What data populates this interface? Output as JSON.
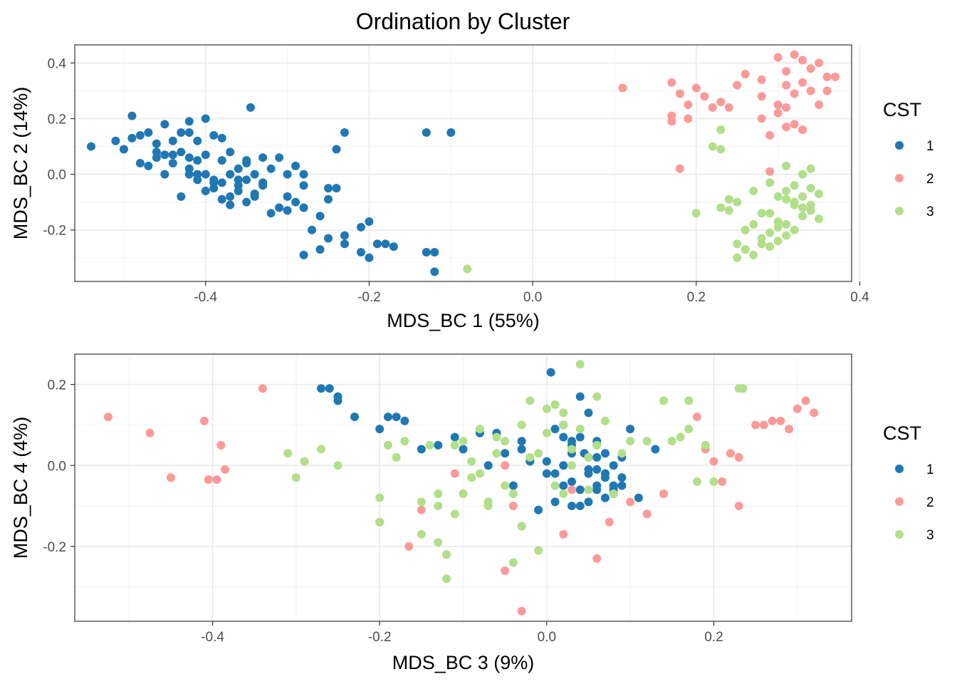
{
  "figure_title": "Ordination by Cluster",
  "colors": {
    "1": "#1f78b4",
    "2": "#fb9a99",
    "3": "#b2df8a"
  },
  "chart_data": [
    {
      "type": "scatter",
      "xlabel": "MDS_BC 1 (55%)",
      "ylabel": "MDS_BC 2 (14%)",
      "xlim": [
        -0.56,
        0.39
      ],
      "ylim": [
        -0.385,
        0.465
      ],
      "xticks": [
        -0.4,
        -0.2,
        0.0,
        0.2,
        0.4
      ],
      "xtick_labels": [
        "-0.4",
        "-0.2",
        "0.0",
        "0.2",
        "0.4"
      ],
      "yticks": [
        -0.2,
        0.0,
        0.2,
        0.4
      ],
      "ytick_labels": [
        "-0.2",
        "0.0",
        "0.2",
        "0.4"
      ],
      "grid": true,
      "legend": {
        "title": "CST",
        "placement": "right",
        "entries": [
          "1",
          "2",
          "3"
        ]
      },
      "series": [
        {
          "name": "1",
          "color": "#1f78b4",
          "x": [
            -0.54,
            -0.51,
            -0.5,
            -0.49,
            -0.49,
            -0.48,
            -0.48,
            -0.47,
            -0.47,
            -0.46,
            -0.46,
            -0.45,
            -0.45,
            -0.44,
            -0.44,
            -0.43,
            -0.43,
            -0.42,
            -0.42,
            -0.42,
            -0.41,
            -0.41,
            -0.41,
            -0.4,
            -0.4,
            -0.4,
            -0.39,
            -0.39,
            -0.38,
            -0.38,
            -0.38,
            -0.37,
            -0.37,
            -0.37,
            -0.36,
            -0.36,
            -0.35,
            -0.35,
            -0.35,
            -0.34,
            -0.34,
            -0.33,
            -0.33,
            -0.32,
            -0.32,
            -0.31,
            -0.31,
            -0.3,
            -0.3,
            -0.29,
            -0.29,
            -0.28,
            -0.28,
            -0.28,
            -0.27,
            -0.26,
            -0.25,
            -0.25,
            -0.24,
            -0.24,
            -0.23,
            -0.23,
            -0.21,
            -0.21,
            -0.2,
            -0.19,
            -0.18,
            -0.17,
            -0.13,
            -0.13,
            -0.12,
            -0.12,
            -0.1,
            -0.45,
            -0.44,
            -0.43,
            -0.41,
            -0.39,
            -0.36,
            -0.33,
            -0.3,
            -0.28,
            -0.26,
            -0.25,
            -0.23,
            -0.2,
            -0.345,
            -0.42,
            -0.4,
            -0.38,
            -0.37,
            -0.36,
            -0.35,
            -0.34,
            -0.46,
            -0.42,
            -0.39
          ],
          "y": [
            0.1,
            0.12,
            0.09,
            0.21,
            0.13,
            0.14,
            0.04,
            0.15,
            0.03,
            0.11,
            0.06,
            0.18,
            0.07,
            0.04,
            0.12,
            0.15,
            0.08,
            0.19,
            0.06,
            0.0,
            0.12,
            0.05,
            -0.02,
            0.2,
            0.07,
            0.0,
            0.14,
            -0.05,
            0.13,
            0.05,
            -0.03,
            0.08,
            0.0,
            -0.08,
            0.02,
            -0.06,
            0.05,
            -0.02,
            -0.1,
            0.0,
            -0.08,
            0.06,
            -0.03,
            0.02,
            -0.14,
            0.06,
            -0.12,
            0.0,
            -0.08,
            0.03,
            -0.1,
            -0.12,
            -0.04,
            0.0,
            -0.2,
            -0.15,
            -0.23,
            -0.09,
            0.09,
            -0.05,
            -0.25,
            -0.22,
            -0.28,
            -0.19,
            -0.3,
            -0.25,
            -0.25,
            -0.26,
            -0.28,
            0.15,
            -0.35,
            -0.28,
            0.15,
            0.0,
            0.07,
            -0.08,
            0.0,
            -0.02,
            -0.02,
            -0.04,
            -0.13,
            -0.29,
            -0.27,
            -0.05,
            0.15,
            -0.17,
            0.24,
            0.15,
            -0.06,
            -0.09,
            -0.11,
            -0.04,
            0.04,
            -0.07,
            0.08,
            0.02,
            -0.03
          ]
        },
        {
          "name": "2",
          "color": "#fb9a99",
          "x": [
            0.11,
            0.17,
            0.17,
            0.18,
            0.18,
            0.19,
            0.19,
            0.2,
            0.21,
            0.22,
            0.23,
            0.24,
            0.25,
            0.26,
            0.28,
            0.28,
            0.29,
            0.29,
            0.3,
            0.3,
            0.31,
            0.31,
            0.31,
            0.32,
            0.32,
            0.32,
            0.33,
            0.33,
            0.33,
            0.34,
            0.34,
            0.35,
            0.35,
            0.36,
            0.36,
            0.37,
            0.17,
            0.28,
            0.31,
            0.3
          ],
          "y": [
            0.31,
            0.33,
            0.21,
            0.02,
            0.29,
            0.25,
            0.2,
            0.31,
            0.28,
            0.24,
            0.26,
            0.24,
            0.32,
            0.36,
            0.28,
            0.34,
            0.14,
            0.01,
            0.22,
            0.42,
            0.37,
            0.32,
            0.24,
            0.43,
            0.29,
            0.18,
            0.41,
            0.33,
            0.16,
            0.38,
            0.3,
            0.25,
            0.4,
            0.35,
            0.3,
            0.35,
            0.19,
            0.2,
            0.17,
            0.25
          ]
        },
        {
          "name": "3",
          "color": "#b2df8a",
          "x": [
            -0.08,
            0.2,
            0.22,
            0.23,
            0.23,
            0.24,
            0.24,
            0.25,
            0.25,
            0.26,
            0.26,
            0.27,
            0.27,
            0.28,
            0.28,
            0.29,
            0.29,
            0.3,
            0.3,
            0.31,
            0.31,
            0.31,
            0.32,
            0.32,
            0.33,
            0.33,
            0.34,
            0.34,
            0.35,
            0.35,
            0.29,
            0.31,
            0.33,
            0.34,
            0.25,
            0.3,
            0.32,
            0.28,
            0.3,
            0.33,
            0.31,
            0.29,
            0.32,
            0.27,
            0.34,
            0.23
          ],
          "y": [
            -0.34,
            -0.14,
            0.1,
            0.16,
            0.09,
            -0.09,
            -0.13,
            -0.1,
            -0.3,
            -0.2,
            -0.27,
            -0.18,
            -0.06,
            -0.25,
            -0.14,
            -0.21,
            -0.03,
            -0.24,
            -0.08,
            -0.18,
            -0.06,
            0.03,
            -0.2,
            -0.1,
            -0.15,
            0.0,
            -0.13,
            -0.05,
            -0.16,
            -0.07,
            -0.26,
            -0.22,
            -0.08,
            0.02,
            -0.25,
            -0.17,
            -0.11,
            -0.23,
            -0.19,
            -0.12,
            -0.09,
            -0.14,
            -0.04,
            -0.29,
            -0.11,
            -0.12
          ]
        }
      ]
    },
    {
      "type": "scatter",
      "xlabel": "MDS_BC 3 (9%)",
      "ylabel": "MDS_BC 4 (4%)",
      "xlim": [
        -0.565,
        0.365
      ],
      "ylim": [
        -0.385,
        0.275
      ],
      "xticks": [
        -0.4,
        -0.2,
        0.0,
        0.2
      ],
      "xtick_labels": [
        "-0.4",
        "-0.2",
        "0.0",
        "0.2"
      ],
      "yticks": [
        -0.2,
        0.0,
        0.2
      ],
      "ytick_labels": [
        "-0.2",
        "0.0",
        "0.2"
      ],
      "grid": true,
      "legend": {
        "title": "CST",
        "placement": "right",
        "entries": [
          "1",
          "2",
          "3"
        ]
      },
      "series": [
        {
          "name": "1",
          "color": "#1f78b4",
          "x": [
            -0.27,
            -0.26,
            -0.25,
            -0.25,
            -0.23,
            -0.2,
            -0.19,
            -0.18,
            -0.17,
            -0.13,
            -0.11,
            -0.1,
            -0.08,
            -0.07,
            -0.05,
            -0.04,
            -0.03,
            -0.02,
            -0.01,
            0.0,
            0.01,
            0.02,
            0.02,
            0.03,
            0.03,
            0.04,
            0.04,
            0.05,
            0.05,
            0.06,
            0.06,
            0.07,
            0.07,
            0.08,
            0.08,
            0.09,
            0.09,
            0.1,
            0.11,
            0.13,
            0.0,
            0.02,
            0.04,
            0.06,
            0.03,
            0.05,
            0.07,
            0.09,
            0.03,
            0.05,
            0.06,
            -0.06,
            -0.03,
            0.01,
            0.04,
            0.08,
            0.02,
            0.06,
            0.08,
            0.005,
            0.045,
            0.03,
            0.05,
            0.01,
            0.07,
            -0.15,
            0.07
          ],
          "y": [
            0.19,
            0.19,
            0.17,
            0.16,
            0.12,
            0.09,
            0.12,
            0.12,
            0.11,
            0.05,
            0.07,
            0.04,
            0.08,
            0.0,
            0.03,
            -0.05,
            0.04,
            0.01,
            -0.11,
            0.01,
            0.09,
            -0.05,
            0.0,
            0.03,
            -0.1,
            0.07,
            -0.06,
            0.02,
            -0.09,
            0.02,
            -0.06,
            0.03,
            -0.03,
            0.0,
            -0.07,
            0.02,
            -0.05,
            0.09,
            -0.08,
            0.04,
            -0.02,
            0.07,
            0.17,
            -0.01,
            -0.04,
            0.13,
            -0.08,
            -0.03,
            0.06,
            -0.02,
            -0.05,
            0.08,
            0.06,
            -0.09,
            -0.1,
            -0.06,
            0.1,
            0.06,
            -0.05,
            0.23,
            0.03,
            0.05,
            -0.01,
            -0.02,
            -0.02,
            0.04,
            -0.02
          ]
        },
        {
          "name": "2",
          "color": "#fb9a99",
          "x": [
            -0.525,
            -0.475,
            -0.45,
            -0.41,
            -0.405,
            -0.395,
            -0.39,
            -0.385,
            -0.34,
            -0.29,
            -0.2,
            -0.165,
            -0.15,
            -0.11,
            -0.1,
            -0.05,
            -0.05,
            -0.04,
            -0.03,
            -0.03,
            0.02,
            0.03,
            0.06,
            0.075,
            0.1,
            0.12,
            0.14,
            0.18,
            0.19,
            0.2,
            0.21,
            0.22,
            0.23,
            0.23,
            0.25,
            0.26,
            0.27,
            0.28,
            0.29,
            0.3,
            0.31,
            0.32
          ],
          "y": [
            0.12,
            0.08,
            -0.03,
            0.11,
            -0.035,
            -0.035,
            0.05,
            -0.01,
            0.19,
            0.01,
            -0.14,
            -0.2,
            -0.11,
            -0.02,
            -0.07,
            -0.26,
            0.0,
            -0.1,
            -0.15,
            -0.36,
            -0.17,
            -0.06,
            -0.23,
            -0.14,
            -0.09,
            -0.12,
            -0.07,
            0.12,
            0.04,
            0.01,
            -0.04,
            0.03,
            0.02,
            -0.1,
            0.1,
            0.1,
            0.11,
            0.11,
            0.09,
            0.14,
            0.16,
            0.13
          ]
        },
        {
          "name": "3",
          "color": "#b2df8a",
          "x": [
            -0.31,
            -0.3,
            -0.29,
            -0.27,
            -0.25,
            -0.2,
            -0.2,
            -0.19,
            -0.18,
            -0.17,
            -0.15,
            -0.15,
            -0.14,
            -0.13,
            -0.13,
            -0.12,
            -0.12,
            -0.11,
            -0.11,
            -0.1,
            -0.1,
            -0.09,
            -0.09,
            -0.08,
            -0.08,
            -0.07,
            -0.07,
            -0.06,
            -0.06,
            -0.05,
            -0.05,
            -0.04,
            -0.04,
            -0.03,
            -0.03,
            -0.02,
            -0.02,
            -0.01,
            -0.01,
            0.0,
            0.0,
            0.01,
            0.01,
            0.02,
            0.02,
            0.02,
            0.03,
            0.03,
            0.04,
            0.04,
            0.05,
            0.05,
            0.06,
            0.06,
            0.07,
            0.08,
            0.09,
            0.1,
            0.12,
            0.14,
            0.15,
            0.16,
            0.17,
            0.17,
            0.18,
            0.19,
            0.2,
            0.23,
            0.235,
            -0.12,
            -0.13
          ],
          "y": [
            0.03,
            -0.03,
            0.01,
            0.04,
            0.0,
            -0.08,
            -0.14,
            0.05,
            0.02,
            0.06,
            -0.09,
            -0.17,
            0.05,
            -0.19,
            -0.07,
            -0.22,
            -0.28,
            0.05,
            -0.12,
            -0.07,
            0.06,
            -0.03,
            0.01,
            0.09,
            -0.02,
            -0.09,
            -0.1,
            0.03,
            0.07,
            -0.05,
            0.06,
            -0.07,
            -0.24,
            0.1,
            -0.15,
            0.16,
            0.02,
            -0.21,
            0.03,
            0.14,
            0.08,
            -0.05,
            0.15,
            0.1,
            -0.07,
            0.13,
            0.0,
            0.04,
            0.25,
            0.09,
            0.02,
            -0.06,
            0.05,
            0.17,
            0.11,
            -0.07,
            0.03,
            0.06,
            0.06,
            0.16,
            0.06,
            0.07,
            0.16,
            0.09,
            -0.04,
            0.05,
            -0.04,
            0.19,
            0.19,
            -0.22,
            -0.1
          ]
        }
      ]
    }
  ]
}
